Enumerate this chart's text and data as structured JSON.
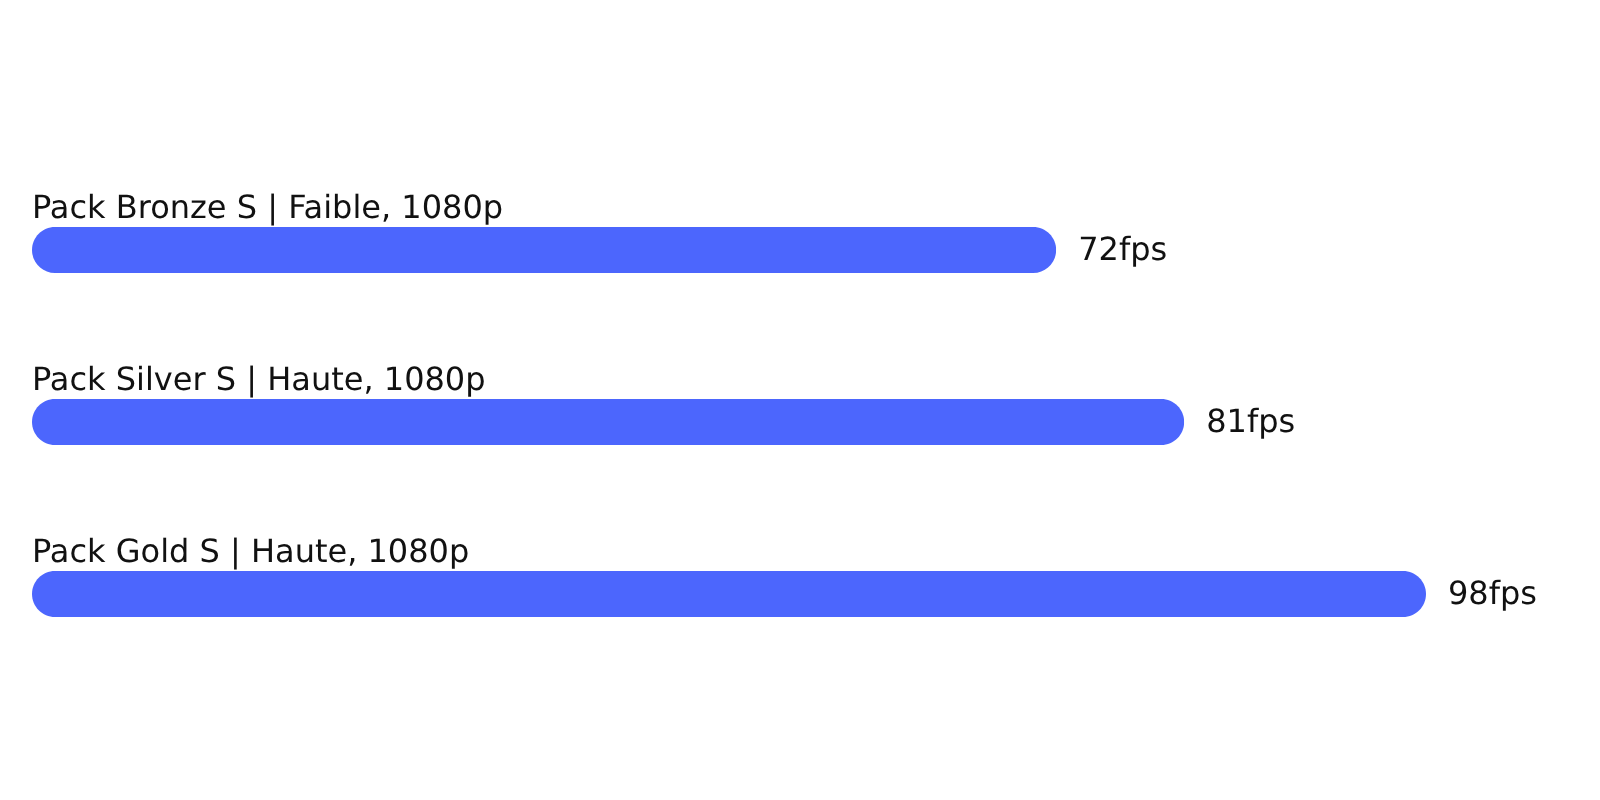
{
  "chart_data": {
    "type": "bar",
    "orientation": "horizontal",
    "categories": [
      "Pack Bronze S | Faible, 1080p",
      "Pack Silver S | Haute, 1080p",
      "Pack Gold S | Haute, 1080p"
    ],
    "values": [
      72,
      81,
      98
    ],
    "color": "#4c66fd",
    "value_labels": [
      "72fps",
      "81fps",
      "98fps"
    ]
  }
}
